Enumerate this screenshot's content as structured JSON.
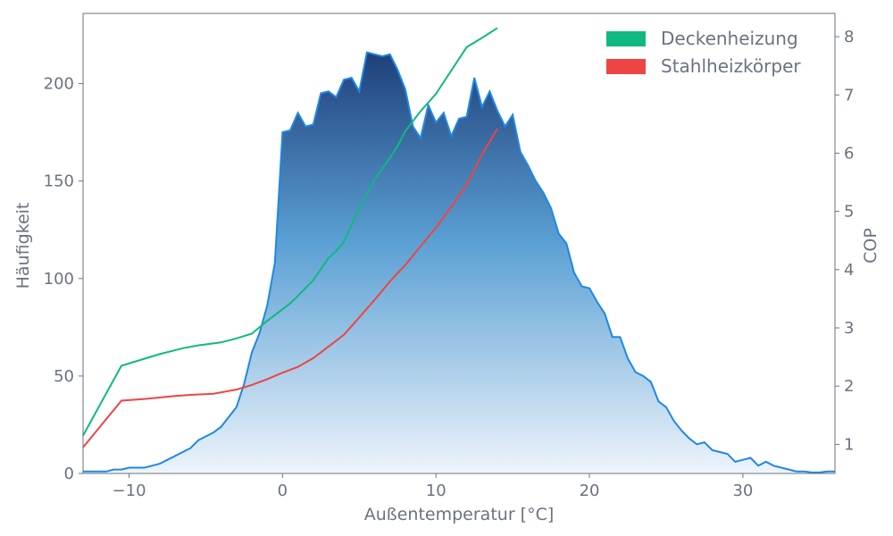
{
  "chart_data": {
    "type": "area",
    "xlabel": "Außentemperatur [°C]",
    "ylabel_left": "Häufigkeit",
    "ylabel_right": "COP",
    "xlim": [
      -13,
      36
    ],
    "ylim_left": [
      0,
      236
    ],
    "ylim_right": [
      0.5,
      8.4
    ],
    "x_ticks": [
      -10,
      0,
      10,
      20,
      30
    ],
    "x_tick_labels": [
      "−10",
      "0",
      "10",
      "20",
      "30"
    ],
    "y_left_ticks": [
      0,
      50,
      100,
      150,
      200
    ],
    "y_right_ticks": [
      1,
      2,
      3,
      4,
      5,
      6,
      7,
      8
    ],
    "grid": false,
    "legend_position": "top-right",
    "frequency": {
      "color": "#1e88e5",
      "fill_top": "#1f3f7a",
      "fill_bottom": "#eef4fb",
      "x": [
        -13,
        -12.5,
        -12,
        -11.5,
        -11,
        -10.5,
        -10,
        -9.5,
        -9,
        -8.5,
        -8,
        -7.5,
        -7,
        -6.5,
        -6,
        -5.5,
        -5,
        -4.5,
        -4,
        -3.5,
        -3,
        -2.5,
        -2,
        -1.5,
        -1,
        -0.5,
        0,
        0.5,
        1,
        1.5,
        2,
        2.5,
        3,
        3.5,
        4,
        4.5,
        5,
        5.5,
        6,
        6.5,
        7,
        7.5,
        8,
        8.5,
        9,
        9.5,
        10,
        10.5,
        11,
        11.5,
        12,
        12.5,
        13,
        13.5,
        14,
        14.5,
        15,
        15.5,
        16,
        16.5,
        17,
        17.5,
        18,
        18.5,
        19,
        19.5,
        20,
        20.5,
        21,
        21.5,
        22,
        22.5,
        23,
        23.5,
        24,
        24.5,
        25,
        25.5,
        26,
        26.5,
        27,
        27.5,
        28,
        28.5,
        29,
        29.5,
        30,
        30.5,
        31,
        31.5,
        32,
        32.5,
        33,
        33.5,
        34,
        34.5,
        35,
        35.5,
        36
      ],
      "values": [
        1,
        1,
        1,
        1,
        2,
        2,
        3,
        3,
        3,
        4,
        5,
        7,
        9,
        11,
        13,
        17,
        19,
        21,
        24,
        29,
        34,
        46,
        62,
        72,
        86,
        108,
        175,
        176,
        185,
        178,
        179,
        195,
        196,
        193,
        202,
        203,
        196,
        216,
        215,
        214,
        215,
        207,
        197,
        178,
        172,
        189,
        180,
        185,
        173,
        182,
        183,
        203,
        188,
        196,
        186,
        178,
        184,
        165,
        158,
        150,
        144,
        136,
        123,
        118,
        103,
        96,
        95,
        88,
        82,
        70,
        70,
        59,
        52,
        50,
        47,
        37,
        34,
        27,
        22,
        18,
        15,
        16,
        12,
        11,
        10,
        6,
        7,
        8,
        4,
        6,
        4,
        3,
        2,
        1,
        1,
        0.5,
        0.5,
        1,
        1
      ]
    },
    "series": [
      {
        "name": "Deckenheizung",
        "color": "#10b981",
        "x": [
          -13,
          -10.5,
          -8,
          -6.5,
          -5.5,
          -4,
          -3,
          -2,
          -1,
          0,
          0.5,
          1,
          2,
          3,
          3.5,
          4,
          5,
          6,
          7,
          7.5,
          8,
          9,
          10,
          11,
          12,
          13,
          14
        ],
        "values": [
          1.15,
          2.35,
          2.55,
          2.65,
          2.7,
          2.75,
          2.82,
          2.9,
          3.12,
          3.32,
          3.42,
          3.55,
          3.82,
          4.2,
          4.32,
          4.48,
          5.05,
          5.55,
          5.92,
          6.12,
          6.38,
          6.72,
          7.02,
          7.42,
          7.82,
          7.98,
          8.15
        ]
      },
      {
        "name": "Stahlheizkörper",
        "color": "#ef4444",
        "x": [
          -13,
          -10.5,
          -9,
          -7,
          -6,
          -4.5,
          -3,
          -2,
          -1,
          0,
          1,
          2,
          3,
          4,
          5,
          6,
          7,
          8,
          9,
          10,
          11,
          12,
          13,
          14
        ],
        "values": [
          0.95,
          1.75,
          1.78,
          1.83,
          1.85,
          1.87,
          1.94,
          2.02,
          2.12,
          2.23,
          2.33,
          2.48,
          2.68,
          2.88,
          3.18,
          3.48,
          3.8,
          4.08,
          4.4,
          4.72,
          5.08,
          5.46,
          5.98,
          6.42
        ]
      }
    ]
  }
}
